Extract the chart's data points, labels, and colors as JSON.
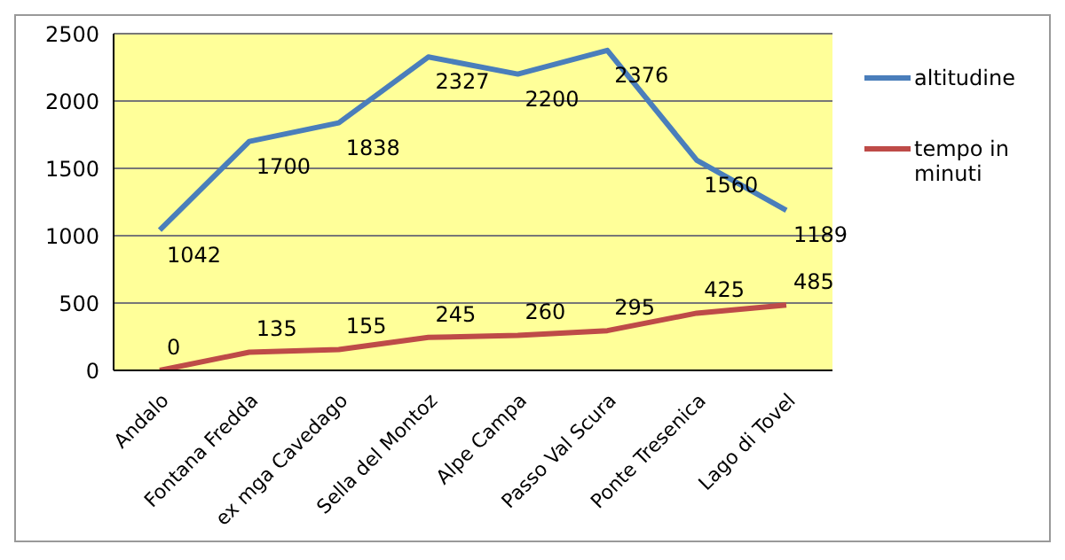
{
  "chart_data": {
    "type": "line",
    "categories": [
      "Andalo",
      "Fontana Fredda",
      "ex mga Cavedago",
      "Sella del Montoz",
      "Alpe Campa",
      "Passo Val Scura",
      "Ponte  Tresenica",
      "Lago di Tovel"
    ],
    "series": [
      {
        "name": "altitudine",
        "color": "#4a7ebb",
        "values": [
          1042,
          1700,
          1838,
          2327,
          2200,
          2376,
          1560,
          1189
        ]
      },
      {
        "name": "tempo in minuti",
        "color": "#be4b48",
        "values": [
          0,
          135,
          155,
          245,
          260,
          295,
          425,
          485
        ]
      }
    ],
    "ylim": [
      0,
      2500
    ],
    "yticks": [
      0,
      500,
      1000,
      1500,
      2000,
      2500
    ],
    "grid": "y",
    "legend": "right",
    "marker": "none",
    "line_style": "solid",
    "data_labels": true
  }
}
